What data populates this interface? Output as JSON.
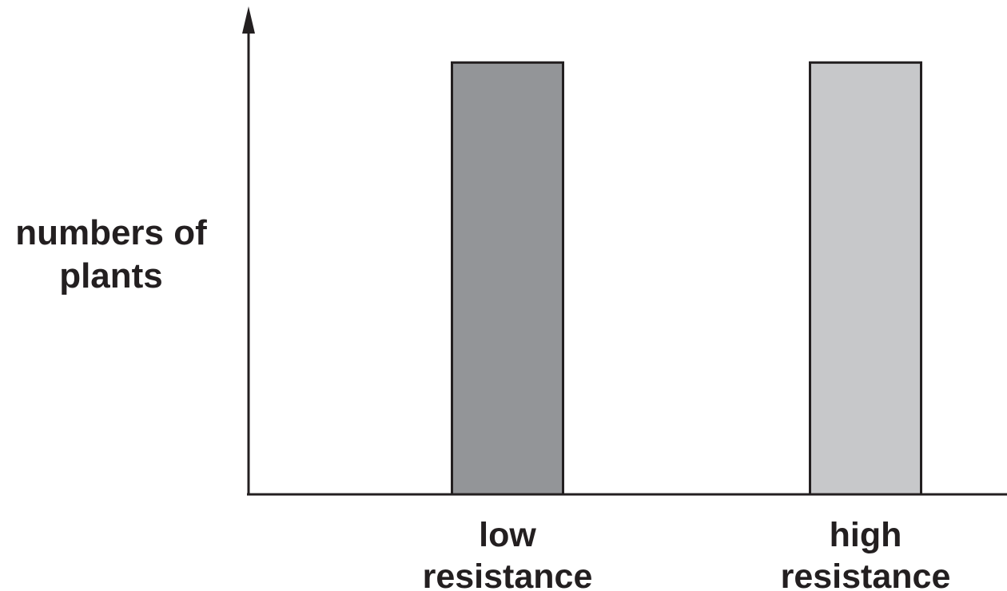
{
  "chart_data": {
    "type": "bar",
    "title": "",
    "ylabel_lines": [
      "numbers of",
      "plants"
    ],
    "xlabel": "",
    "categories": [
      {
        "lines": [
          "low",
          "resistance"
        ]
      },
      {
        "lines": [
          "high",
          "resistance"
        ]
      }
    ],
    "values": [
      100,
      100
    ],
    "ylim": [
      0,
      113
    ],
    "grid": false,
    "legend": "none",
    "y_ticks": false,
    "colors": {
      "bar_fills": [
        "#939598",
        "#c7c8ca"
      ],
      "bar_stroke": "#231f20",
      "axis": "#231f20",
      "text": "#231f20"
    }
  }
}
